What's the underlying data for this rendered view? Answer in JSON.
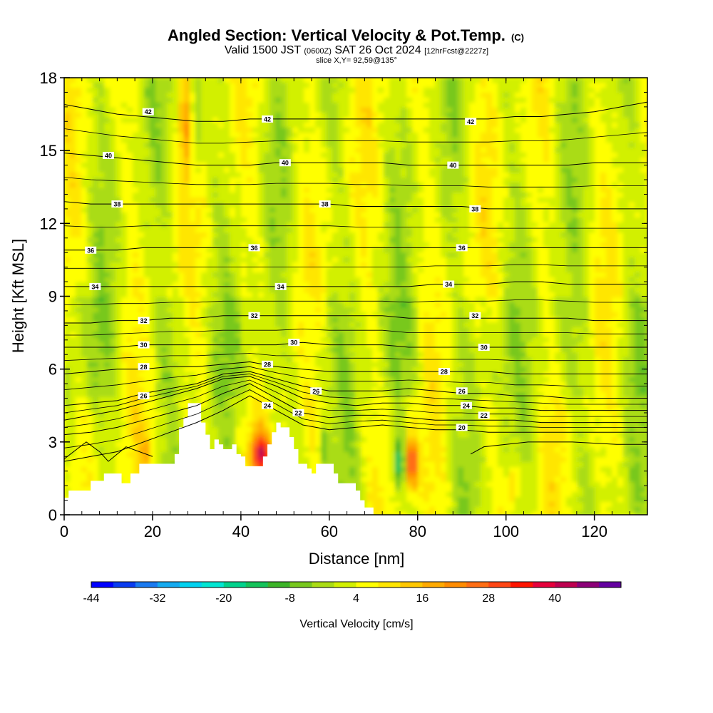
{
  "title": "Angled Section: Vertical Velocity & Pot.Temp.",
  "title_suffix": "(C)",
  "subtitle_pre": "Valid 1500 JST",
  "subtitle_small1": "(0600Z)",
  "subtitle_mid": "SAT 26 Oct 2024",
  "subtitle_small2": "[12hrFcst@2227z]",
  "slice_label": "slice X,Y= 92,59@135°",
  "chart_data": {
    "type": "heatmap",
    "xlabel": "Distance [nm]",
    "ylabel": "Height [Kft MSL]",
    "xlim": [
      0,
      132
    ],
    "ylim": [
      0,
      18
    ],
    "x_ticks": [
      "0",
      "20",
      "40",
      "60",
      "80",
      "100",
      "120"
    ],
    "y_ticks": [
      "0",
      "3",
      "6",
      "9",
      "12",
      "15",
      "18"
    ],
    "colorbar": {
      "label": "Vertical Velocity [cm/s]",
      "min": -44,
      "max": 52,
      "step": 4,
      "ticks": [
        "-44",
        "-32",
        "-20",
        "-8",
        "4",
        "16",
        "28",
        "40"
      ],
      "colors": [
        "#0000ff",
        "#0a3cf0",
        "#1a7af0",
        "#14aaf0",
        "#00d2f0",
        "#00e6d2",
        "#00d28c",
        "#14c35a",
        "#3cb428",
        "#78c81e",
        "#aadc14",
        "#d2f000",
        "#ffff00",
        "#ffe600",
        "#ffc800",
        "#ffaa00",
        "#ff8c00",
        "#ff6e14",
        "#ff4614",
        "#ff1400",
        "#e6003c",
        "#be0050",
        "#8c0078",
        "#6400a0"
      ]
    },
    "isentropes_k": [
      {
        "theta": 20,
        "h": [
          2.2,
          2.4,
          2.6,
          3.0,
          3.4,
          3.8,
          4.3,
          4.9,
          4.3,
          3.7,
          3.5,
          3.6,
          3.7,
          3.6,
          3.5,
          3.5,
          3.4,
          3.4,
          3.4,
          3.4,
          3.4,
          3.4,
          3.4
        ],
        "labels": [
          [
            90,
            3.6
          ]
        ]
      },
      {
        "theta": 22,
        "h": [
          3.3,
          3.4,
          3.6,
          3.9,
          4.2,
          4.5,
          5.0,
          5.4,
          4.8,
          4.2,
          4.0,
          4.1,
          4.1,
          4.0,
          3.9,
          3.9,
          3.9,
          3.9,
          3.8,
          3.8,
          3.8,
          3.8,
          3.8
        ],
        "labels": [
          [
            53,
            4.2
          ],
          [
            95,
            4.1
          ]
        ]
      },
      {
        "theta": 24,
        "h": [
          3.9,
          4.1,
          4.3,
          4.6,
          4.9,
          5.2,
          5.6,
          5.7,
          5.3,
          4.8,
          4.6,
          4.5,
          4.6,
          4.6,
          4.5,
          4.5,
          4.4,
          4.4,
          4.3,
          4.3,
          4.3,
          4.3,
          4.3
        ],
        "labels": [
          [
            46,
            4.5
          ],
          [
            91,
            4.5
          ]
        ]
      },
      {
        "theta": 26,
        "h": [
          4.5,
          4.6,
          4.7,
          5.0,
          5.2,
          5.4,
          5.8,
          5.9,
          5.6,
          5.3,
          5.1,
          5.1,
          5.1,
          5.2,
          5.1,
          5.0,
          5.0,
          4.9,
          4.9,
          4.8,
          4.8,
          4.8,
          4.8
        ],
        "labels": [
          [
            18,
            4.9
          ],
          [
            57,
            5.1
          ],
          [
            90,
            5.1
          ]
        ]
      },
      {
        "theta": 28,
        "h": [
          5.8,
          5.9,
          6.0,
          6.0,
          6.1,
          6.1,
          6.2,
          6.3,
          6.1,
          6.0,
          5.9,
          5.9,
          5.9,
          5.9,
          5.9,
          5.9,
          5.9,
          5.8,
          5.8,
          5.8,
          5.8,
          5.8,
          5.8
        ],
        "labels": [
          [
            18,
            6.1
          ],
          [
            46,
            6.2
          ],
          [
            86,
            5.9
          ]
        ]
      },
      {
        "theta": 30,
        "h": [
          6.9,
          6.9,
          6.9,
          7.0,
          7.0,
          7.0,
          7.0,
          7.0,
          7.0,
          7.1,
          7.0,
          7.0,
          7.0,
          6.9,
          6.9,
          6.9,
          6.9,
          6.9,
          6.9,
          6.9,
          6.9,
          6.9,
          6.9
        ],
        "labels": [
          [
            18,
            7.0
          ],
          [
            52,
            7.1
          ],
          [
            95,
            6.9
          ]
        ]
      },
      {
        "theta": 32,
        "h": [
          7.9,
          7.9,
          8.0,
          8.0,
          8.1,
          8.1,
          8.2,
          8.2,
          8.2,
          8.2,
          8.2,
          8.2,
          8.2,
          8.1,
          8.1,
          8.1,
          8.1,
          8.1,
          8.1,
          8.1,
          8.0,
          8.0,
          8.0
        ],
        "labels": [
          [
            18,
            8.0
          ],
          [
            43,
            8.2
          ],
          [
            93,
            8.2
          ]
        ]
      },
      {
        "theta": 34,
        "h": [
          9.4,
          9.4,
          9.4,
          9.4,
          9.4,
          9.4,
          9.4,
          9.4,
          9.4,
          9.4,
          9.4,
          9.4,
          9.4,
          9.4,
          9.5,
          9.5,
          9.5,
          9.6,
          9.6,
          9.5,
          9.5,
          9.5,
          9.5
        ],
        "labels": [
          [
            7,
            9.4
          ],
          [
            49,
            9.4
          ],
          [
            87,
            9.5
          ]
        ]
      },
      {
        "theta": 36,
        "h": [
          10.9,
          10.9,
          10.9,
          11.0,
          11.0,
          11.0,
          11.0,
          11.0,
          11.0,
          11.0,
          11.0,
          11.0,
          11.0,
          11.0,
          11.0,
          11.0,
          11.0,
          11.0,
          11.0,
          11.0,
          11.0,
          11.0,
          11.0
        ],
        "labels": [
          [
            6,
            10.9
          ],
          [
            43,
            11.0
          ],
          [
            90,
            11.0
          ]
        ]
      },
      {
        "theta": 38,
        "h": [
          12.9,
          12.8,
          12.8,
          12.8,
          12.8,
          12.8,
          12.8,
          12.8,
          12.8,
          12.8,
          12.8,
          12.7,
          12.7,
          12.7,
          12.7,
          12.7,
          12.6,
          12.6,
          12.6,
          12.6,
          12.6,
          12.6,
          12.6
        ],
        "labels": [
          [
            12,
            12.8
          ],
          [
            59,
            12.8
          ],
          [
            93,
            12.6
          ]
        ]
      },
      {
        "theta": 40,
        "h": [
          14.9,
          14.8,
          14.7,
          14.6,
          14.5,
          14.4,
          14.4,
          14.4,
          14.5,
          14.5,
          14.5,
          14.5,
          14.5,
          14.4,
          14.4,
          14.4,
          14.4,
          14.4,
          14.4,
          14.4,
          14.5,
          14.5,
          14.5
        ],
        "labels": [
          [
            10,
            14.8
          ],
          [
            50,
            14.5
          ],
          [
            88,
            14.4
          ]
        ]
      },
      {
        "theta": 42,
        "h": [
          16.9,
          16.7,
          16.5,
          16.4,
          16.3,
          16.2,
          16.2,
          16.3,
          16.3,
          16.3,
          16.3,
          16.3,
          16.3,
          16.3,
          16.3,
          16.3,
          16.3,
          16.4,
          16.4,
          16.5,
          16.6,
          16.8,
          17.0
        ],
        "labels": [
          [
            19,
            16.6
          ],
          [
            46,
            16.3
          ],
          [
            92,
            16.2
          ]
        ]
      }
    ]
  }
}
